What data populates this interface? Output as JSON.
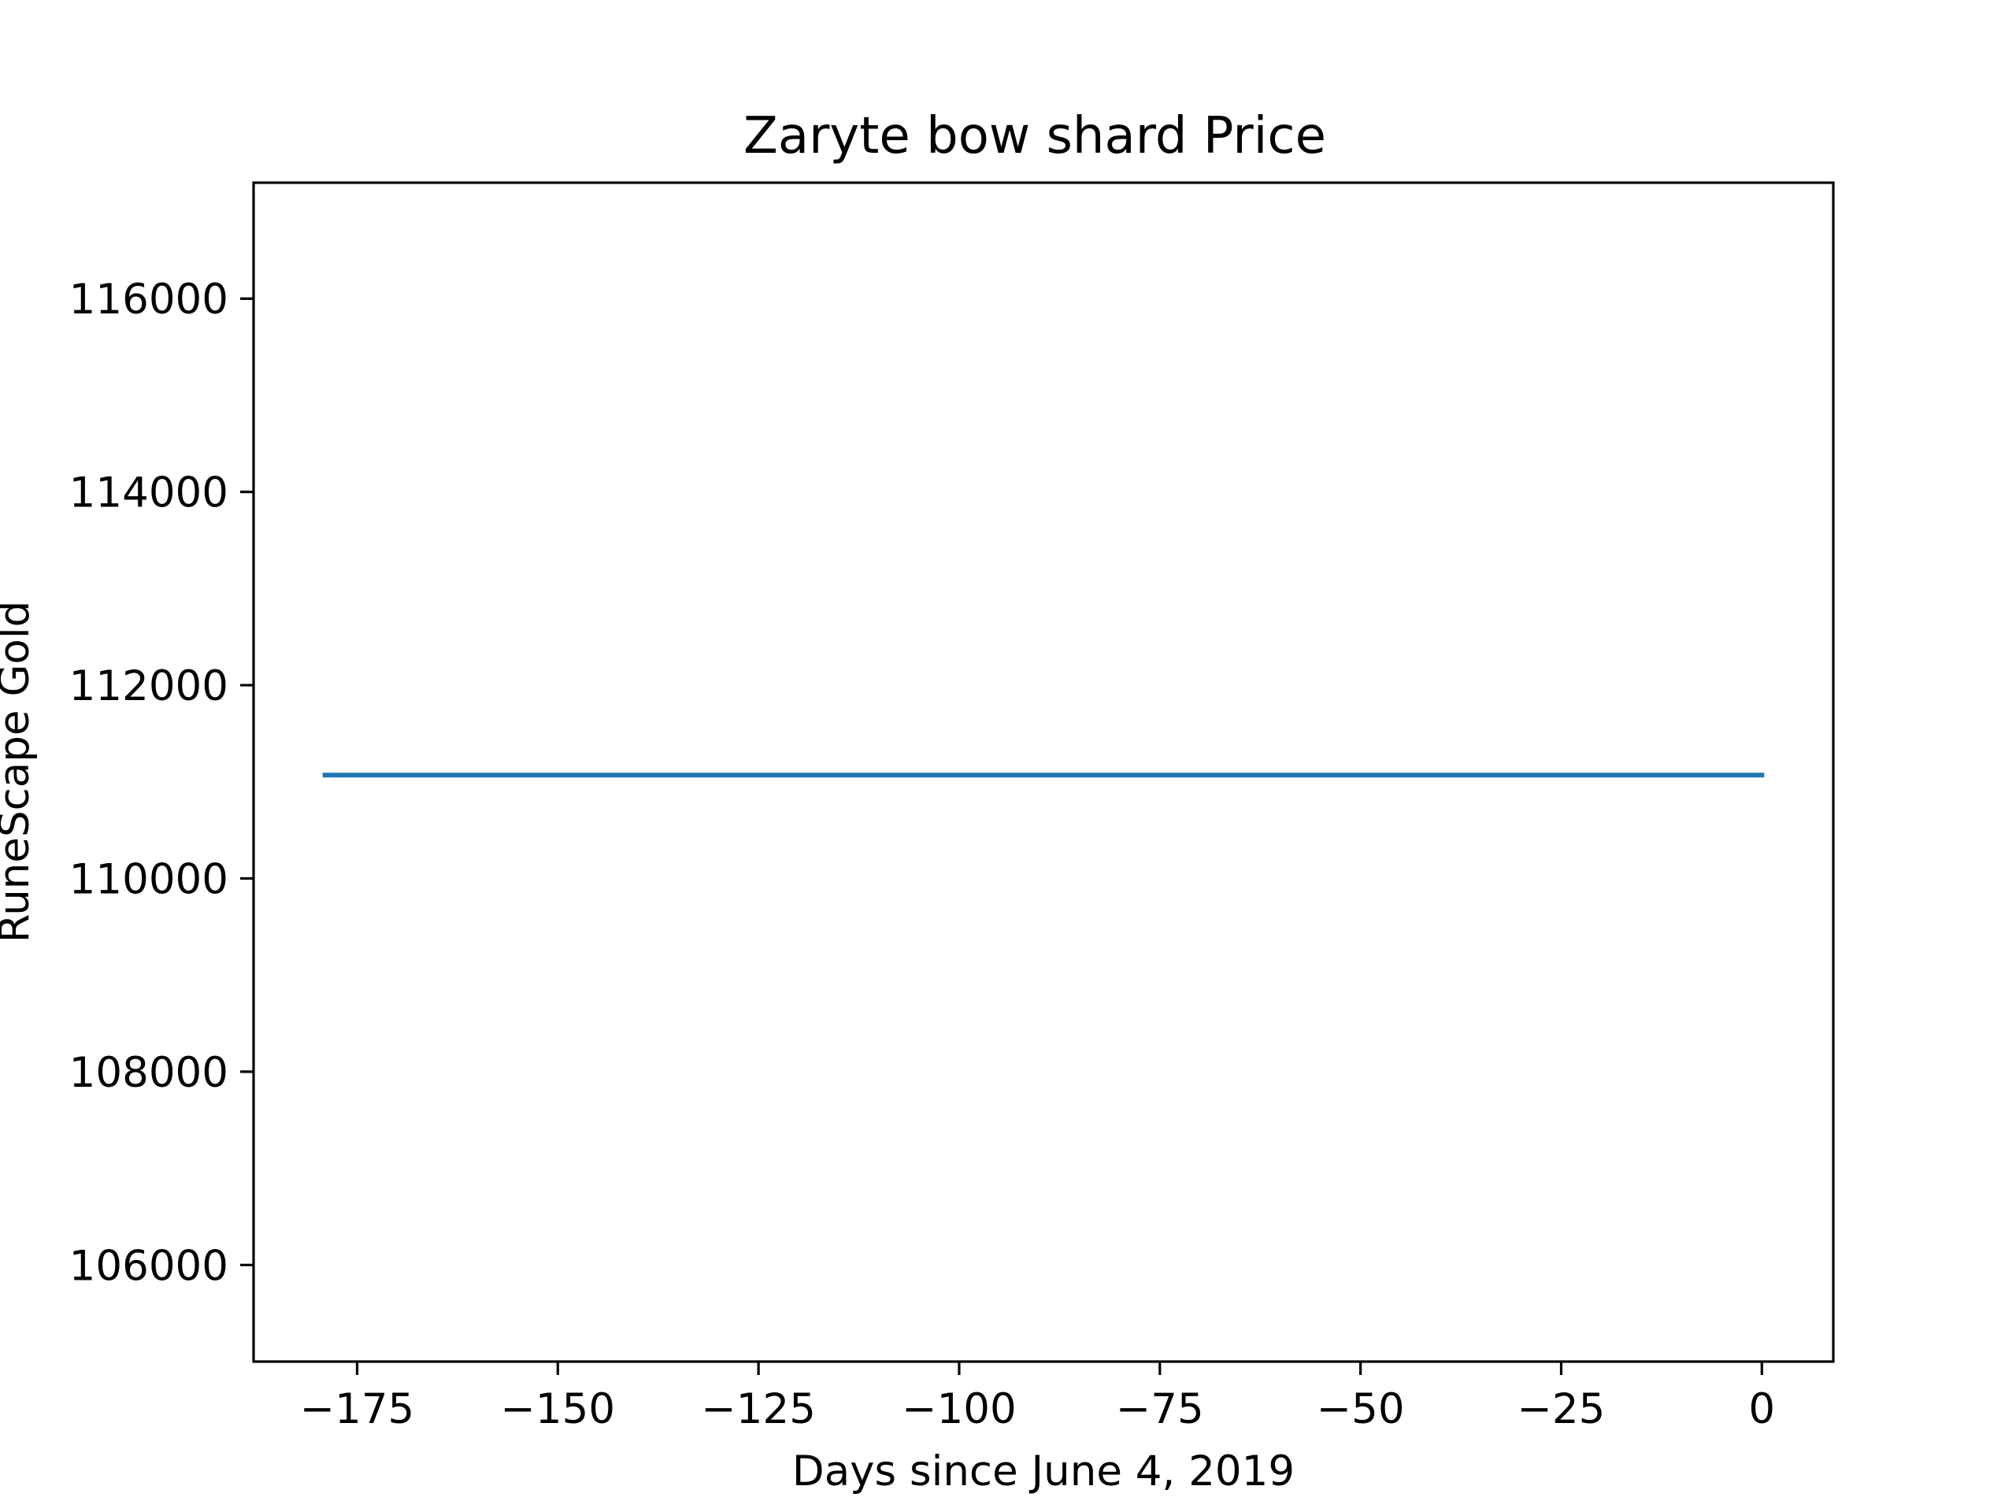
{
  "chart_data": {
    "type": "line",
    "title": "Zaryte bow shard Price",
    "xlabel": "Days since June 4, 2019",
    "ylabel": "RuneScape Gold",
    "xlim": [
      -187.9,
      8.9
    ],
    "ylim": [
      105000,
      117200
    ],
    "xticks": [
      -175,
      -150,
      -125,
      -100,
      -75,
      -50,
      -25,
      0
    ],
    "xtick_labels": [
      "−175",
      "−150",
      "−125",
      "−100",
      "−75",
      "−50",
      "−25",
      "0"
    ],
    "yticks": [
      106000,
      108000,
      110000,
      112000,
      114000,
      116000
    ],
    "ytick_labels": [
      "106000",
      "108000",
      "110000",
      "112000",
      "114000",
      "116000"
    ],
    "grid": false,
    "series": [
      {
        "color": "#1f77b4",
        "x": [
          -179,
          0
        ],
        "y": [
          111070,
          111070
        ]
      }
    ]
  }
}
